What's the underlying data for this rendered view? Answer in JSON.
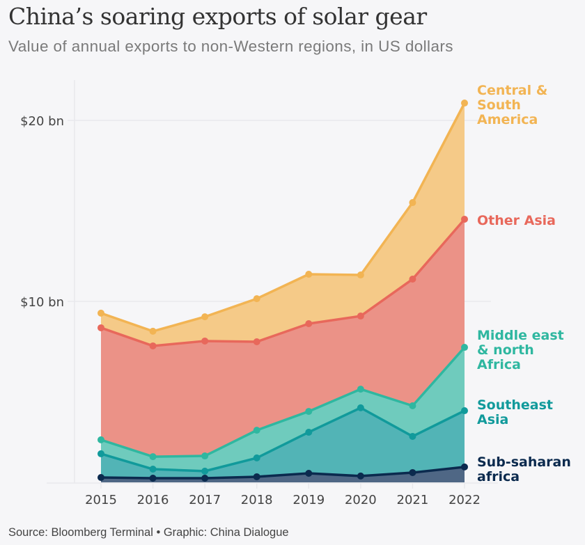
{
  "title": "China’s soaring exports of solar gear",
  "subtitle": "Value of annual exports to non-Western regions, in US dollars",
  "source": "Source: Bloomberg Terminal • Graphic: China Dialogue",
  "chart_data": {
    "type": "area",
    "stacked": true,
    "title": "China’s soaring exports of solar gear",
    "subtitle": "Value of annual exports to non-Western regions, in US dollars",
    "xlabel": "",
    "ylabel": "",
    "x": [
      "2015",
      "2016",
      "2017",
      "2018",
      "2019",
      "2020",
      "2021",
      "2022"
    ],
    "ylim": [
      0,
      22
    ],
    "yticks": [
      {
        "value": 10,
        "label": "$10 bn"
      },
      {
        "value": 20,
        "label": "$20 bn"
      }
    ],
    "grid": true,
    "legend": "direct-labels-right",
    "units": "US$ billions",
    "series": [
      {
        "name": "Sub-saharan africa",
        "label_lines": [
          "Sub-saharan",
          "africa"
        ],
        "line_color": "#0b2a4e",
        "fill_color": "#4f6785",
        "label_color": "#0b2a4e",
        "values": [
          0.27,
          0.23,
          0.23,
          0.31,
          0.5,
          0.35,
          0.54,
          0.85
        ]
      },
      {
        "name": "Southeast Asia",
        "label_lines": [
          "Southeast",
          "Asia"
        ],
        "line_color": "#119a9b",
        "fill_color": "#52b4b6",
        "label_color": "#119a9b",
        "values": [
          1.31,
          0.5,
          0.39,
          1.04,
          2.27,
          3.77,
          2.0,
          3.11
        ]
      },
      {
        "name": "Middle east & north Africa",
        "label_lines": [
          "Middle east",
          "& north",
          "Africa"
        ],
        "line_color": "#2fb7a0",
        "fill_color": "#6fcbbd",
        "label_color": "#2fb7a0",
        "values": [
          0.77,
          0.69,
          0.84,
          1.53,
          1.15,
          1.03,
          1.69,
          3.5
        ]
      },
      {
        "name": "Other Asia",
        "label_lines": [
          "Other Asia"
        ],
        "line_color": "#e8685b",
        "fill_color": "#eb9287",
        "label_color": "#e8685b",
        "values": [
          6.19,
          6.12,
          6.35,
          4.89,
          4.85,
          4.04,
          7.0,
          7.08
        ]
      },
      {
        "name": "Central & South America",
        "label_lines": [
          "Central &",
          "South",
          "America"
        ],
        "line_color": "#f2b453",
        "fill_color": "#f5ca88",
        "label_color": "#f2b453",
        "values": [
          0.81,
          0.81,
          1.34,
          2.38,
          2.73,
          2.27,
          4.23,
          6.42
        ]
      }
    ]
  }
}
